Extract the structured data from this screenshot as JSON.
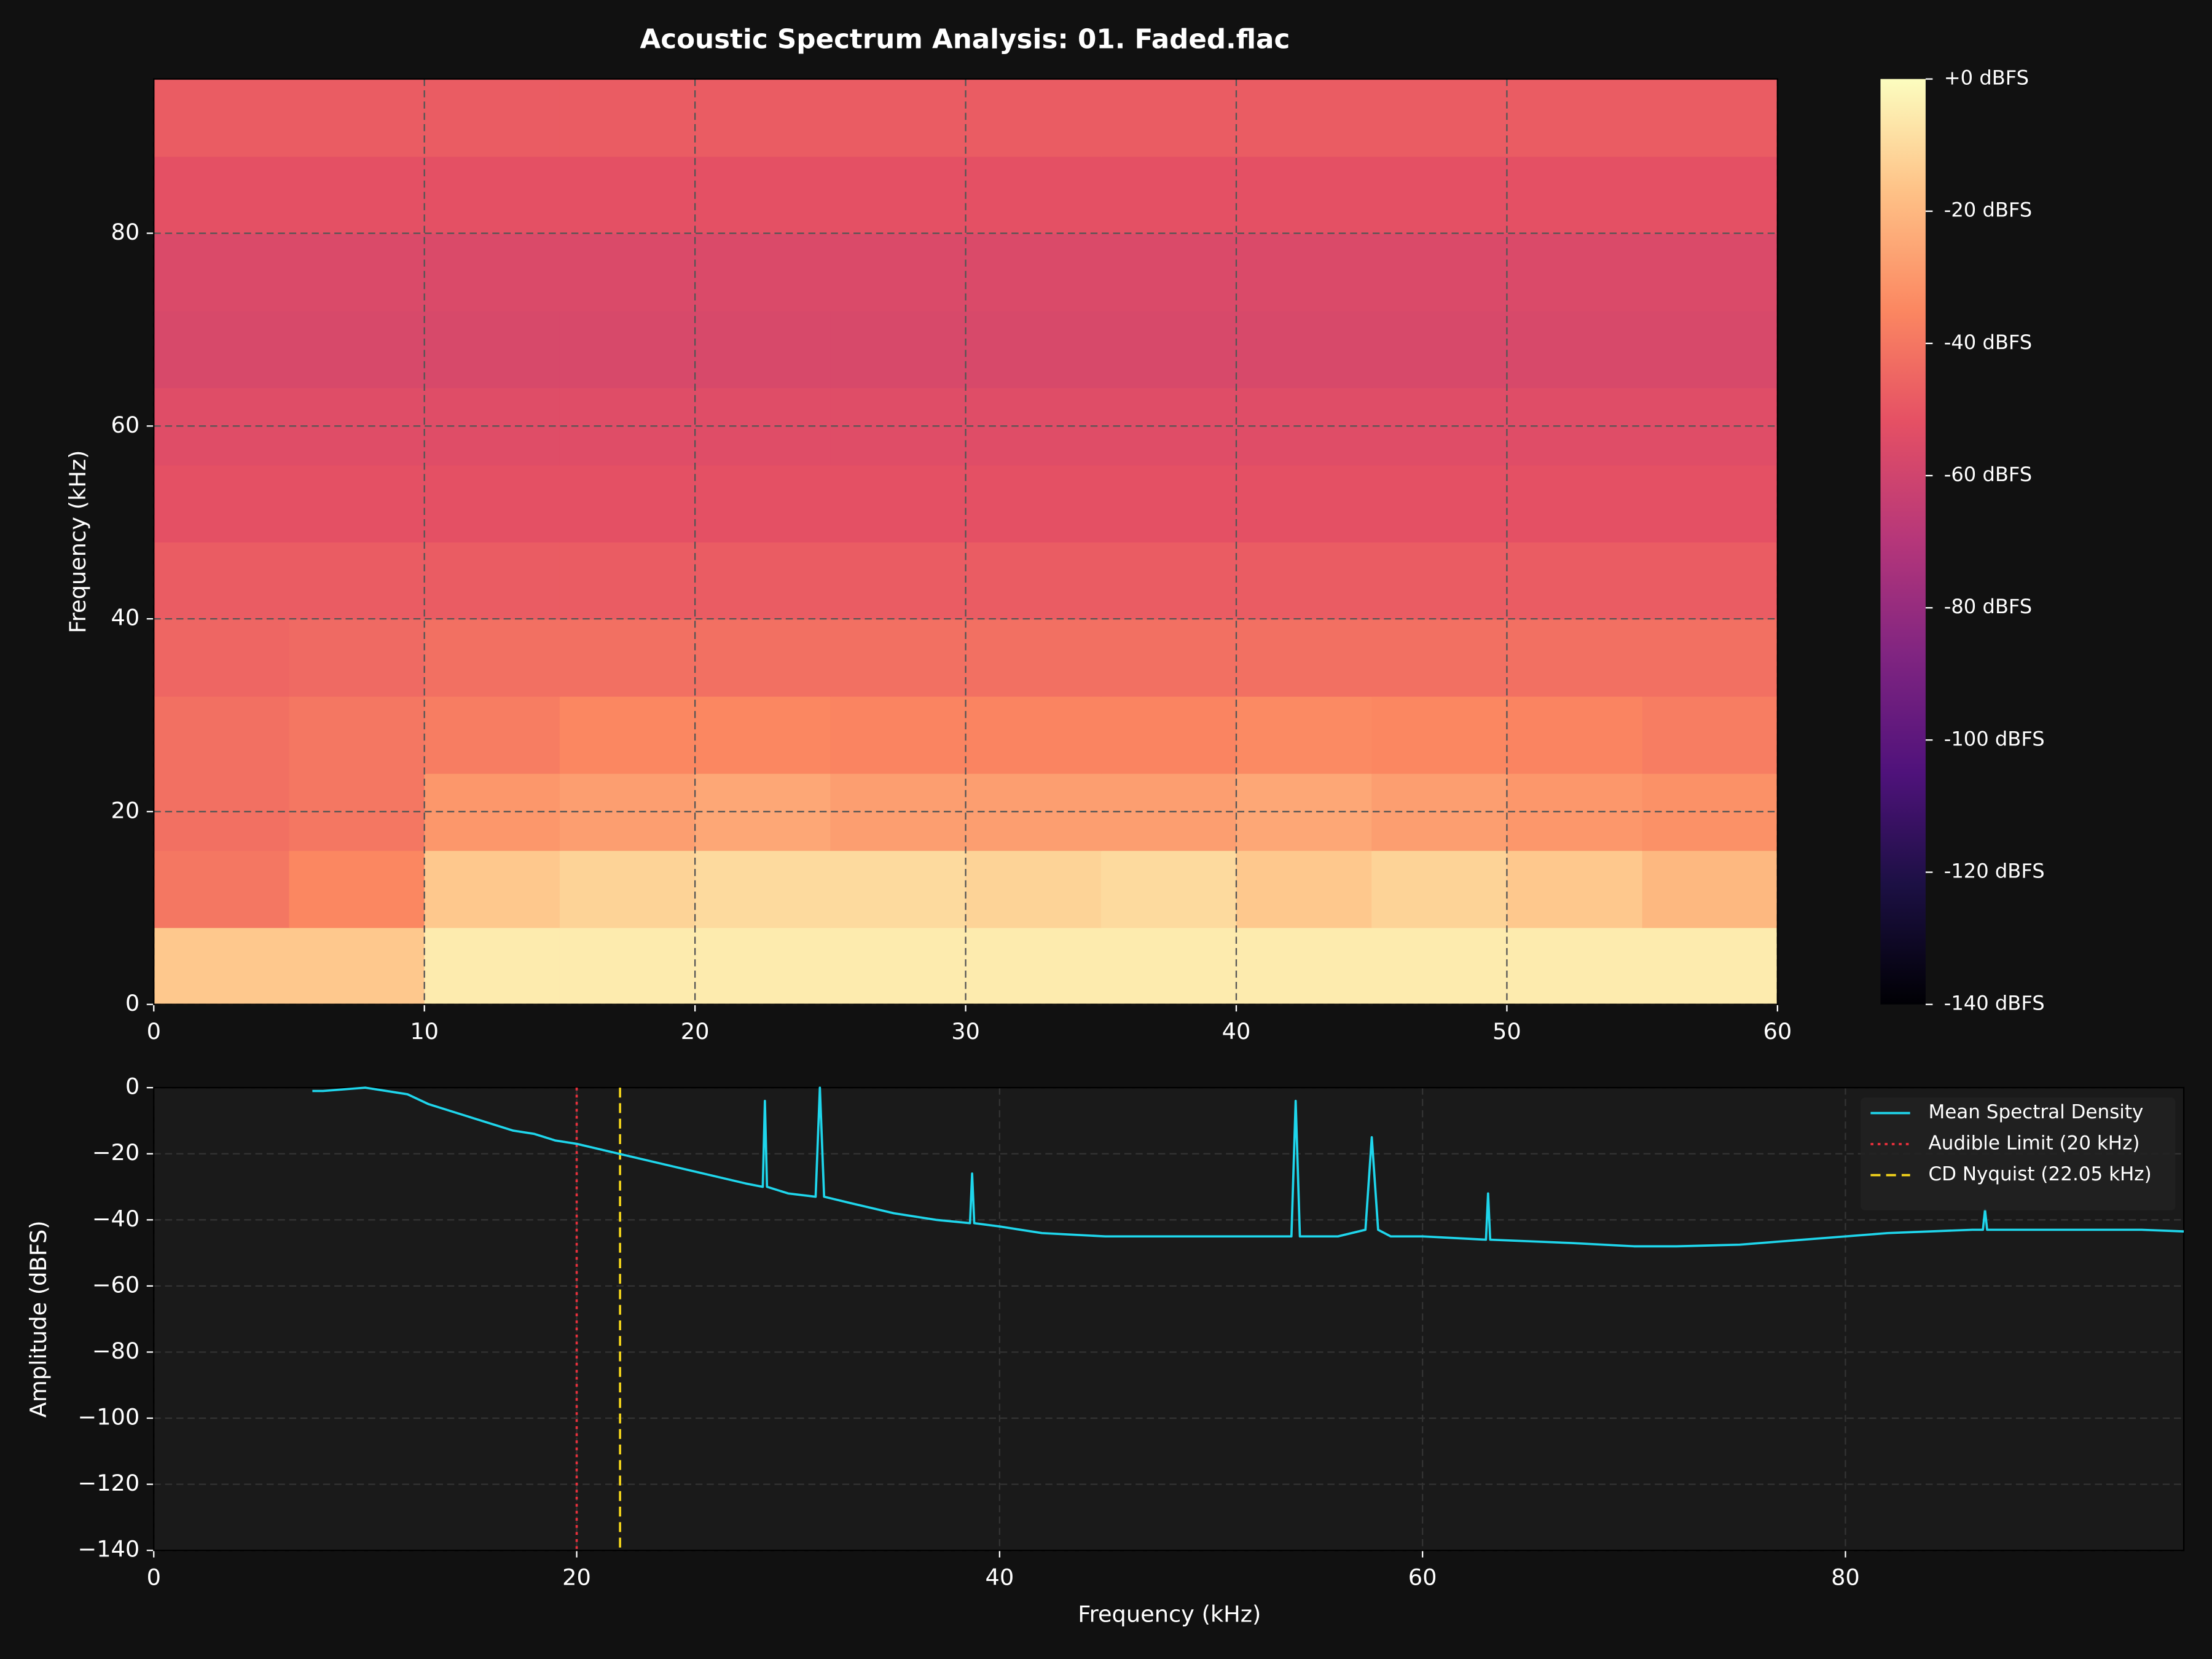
{
  "chart_data": [
    {
      "type": "heatmap",
      "title": "Acoustic Spectrum Analysis: 01. Faded.flac",
      "ylabel": "Frequency (kHz)",
      "colormap": "magma",
      "xbins": [
        0,
        5,
        10,
        15,
        20,
        25,
        30,
        35,
        40,
        45,
        50,
        55,
        60
      ],
      "ybins": [
        0,
        8,
        16,
        24,
        32,
        40,
        48,
        56,
        64,
        72,
        80,
        88,
        96
      ],
      "z": [
        [
          -15,
          -15,
          -5,
          -5,
          -5,
          -5,
          -5,
          -5,
          -5,
          -5,
          -5,
          -5
        ],
        [
          -40,
          -35,
          -15,
          -12,
          -10,
          -10,
          -12,
          -10,
          -15,
          -12,
          -15,
          -20
        ],
        [
          -42,
          -40,
          -30,
          -28,
          -25,
          -28,
          -28,
          -28,
          -25,
          -28,
          -30,
          -32
        ],
        [
          -42,
          -40,
          -38,
          -35,
          -35,
          -36,
          -36,
          -36,
          -34,
          -35,
          -36,
          -38
        ],
        [
          -45,
          -44,
          -42,
          -42,
          -42,
          -42,
          -42,
          -42,
          -42,
          -42,
          -42,
          -42
        ],
        [
          -48,
          -48,
          -48,
          -48,
          -48,
          -48,
          -48,
          -48,
          -48,
          -48,
          -48,
          -48
        ],
        [
          -52,
          -52,
          -52,
          -52,
          -52,
          -52,
          -52,
          -52,
          -52,
          -52,
          -52,
          -52
        ],
        [
          -54,
          -54,
          -54,
          -54,
          -54,
          -54,
          -54,
          -54,
          -54,
          -54,
          -54,
          -54
        ],
        [
          -57,
          -57,
          -57,
          -57,
          -57,
          -57,
          -57,
          -57,
          -57,
          -57,
          -57,
          -57
        ],
        [
          -56,
          -56,
          -56,
          -56,
          -56,
          -56,
          -56,
          -56,
          -56,
          -56,
          -56,
          -56
        ],
        [
          -52,
          -52,
          -52,
          -52,
          -52,
          -52,
          -52,
          -52,
          -52,
          -52,
          -52,
          -52
        ],
        [
          -48,
          -48,
          -48,
          -48,
          -48,
          -48,
          -48,
          -48,
          -48,
          -48,
          -48,
          -48
        ]
      ],
      "xlim": [
        0,
        60
      ],
      "xticks": [
        0,
        10,
        20,
        30,
        40,
        50,
        60
      ],
      "ylim": [
        0,
        96
      ],
      "yticks": [
        0,
        20,
        40,
        60,
        80
      ],
      "grid": true,
      "clim": [
        -140,
        0
      ],
      "cticks": [
        {
          "value": 0,
          "label": "+0 dBFS"
        },
        {
          "value": -20,
          "label": "-20 dBFS"
        },
        {
          "value": -40,
          "label": "-40 dBFS"
        },
        {
          "value": -60,
          "label": "-60 dBFS"
        },
        {
          "value": -80,
          "label": "-80 dBFS"
        },
        {
          "value": -100,
          "label": "-100 dBFS"
        },
        {
          "value": -120,
          "label": "-120 dBFS"
        },
        {
          "value": -140,
          "label": "-140 dBFS"
        }
      ]
    },
    {
      "type": "line",
      "xlabel": "Frequency (kHz)",
      "ylabel": "Amplitude (dBFS)",
      "x": [
        7.5,
        8,
        10,
        12,
        13,
        15,
        17,
        18,
        19,
        20,
        22,
        24,
        26,
        28,
        28.8,
        28.9,
        29,
        30,
        31.3,
        31.5,
        31.7,
        33,
        35,
        37,
        38.6,
        38.7,
        38.8,
        40,
        42,
        45,
        50,
        53.8,
        54,
        54.2,
        56,
        57.3,
        57.6,
        57.9,
        58.5,
        60,
        63,
        63.1,
        63.2,
        67,
        70,
        72,
        75,
        78,
        82,
        86,
        86.5,
        86.6,
        86.7,
        90,
        94,
        96
      ],
      "series": [
        {
          "name": "Mean Spectral Density",
          "color": "#1fd6ec",
          "values": [
            -1,
            -1,
            0,
            -2,
            -5,
            -9,
            -13,
            -14,
            -16,
            -17,
            -20,
            -23,
            -26,
            -29,
            -30,
            -4,
            -30,
            -32,
            -33,
            0,
            -33,
            -35,
            -38,
            -40,
            -41,
            -26,
            -41,
            -42,
            -44,
            -45,
            -45,
            -45,
            -4,
            -45,
            -45,
            -43,
            -15,
            -43,
            -45,
            -45,
            -46,
            -32,
            -46,
            -47,
            -48,
            -48,
            -47.5,
            -46,
            -44,
            -43,
            -43,
            -37,
            -43,
            -43,
            -43,
            -43.5
          ]
        }
      ],
      "vlines": [
        {
          "name": "Audible Limit (20 kHz)",
          "x": 20,
          "color": "#e8303c",
          "style": "dotted"
        },
        {
          "name": "CD Nyquist (22.05 kHz)",
          "x": 22.05,
          "color": "#f2d31b",
          "style": "dashed"
        }
      ],
      "xlim": [
        0,
        96
      ],
      "xticks": [
        0,
        20,
        40,
        60,
        80
      ],
      "ylim": [
        -140,
        0
      ],
      "yticks": [
        {
          "value": -140,
          "label": "−140"
        },
        {
          "value": -120,
          "label": "−120"
        },
        {
          "value": -100,
          "label": "−100"
        },
        {
          "value": -80,
          "label": "−80"
        },
        {
          "value": -60,
          "label": "−60"
        },
        {
          "value": -40,
          "label": "−40"
        },
        {
          "value": -20,
          "label": "−20"
        },
        0
      ],
      "grid": true,
      "legend": "upper right"
    }
  ]
}
